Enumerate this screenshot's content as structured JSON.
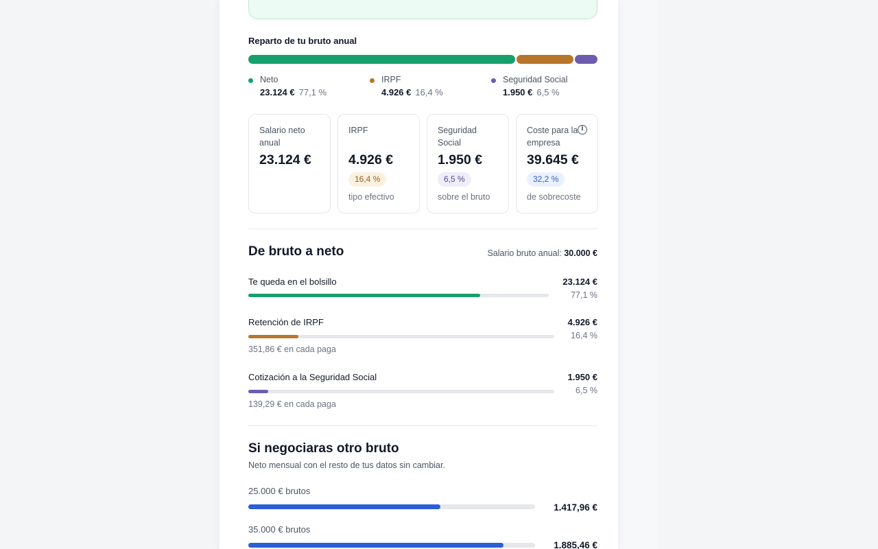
{
  "colors": {
    "neto": "#16a06d",
    "irpf": "#b7762a",
    "seguridad_social": "#6d5cae",
    "negotiation": "#2a5fd6",
    "badge_irpf_bg": "#fbf1e1",
    "badge_irpf_fg": "#9a5f1c",
    "badge_ss_bg": "#efedf7",
    "badge_ss_fg": "#5b4b9a",
    "badge_cost_bg": "#eaf1fe",
    "badge_cost_fg": "#2a5fd6"
  },
  "breakdown": {
    "title": "Reparto de tu bruto anual",
    "shares": {
      "neto": 0.771,
      "irpf": 0.164,
      "seguridad_social": 0.065
    },
    "legend": [
      {
        "label": "Neto",
        "value": "23.124 €",
        "pct": "77,1 %"
      },
      {
        "label": "IRPF",
        "value": "4.926 €",
        "pct": "16,4 %"
      },
      {
        "label": "Seguridad Social",
        "value": "1.950 €",
        "pct": "6,5 %"
      }
    ]
  },
  "kpis": [
    {
      "label": "Salario neto anual",
      "value": "23.124 €",
      "badge": "",
      "note": ""
    },
    {
      "label": "IRPF",
      "value": "4.926 €",
      "badge": "16,4 %",
      "note": "tipo efectivo"
    },
    {
      "label": "Seguridad Social",
      "value": "1.950 €",
      "badge": "6,5 %",
      "note": "sobre el bruto"
    },
    {
      "label": "Coste para la empresa",
      "value": "39.645 €",
      "badge": "32,2 %",
      "note": "de sobrecoste",
      "icon": "info-icon"
    }
  ],
  "gross_to_net": {
    "title": "De bruto a neto",
    "gross_label": "Salario bruto anual:",
    "gross_value": "30.000 €",
    "rows": [
      {
        "label": "Te queda en el bolsillo",
        "amount": "23.124 €",
        "pct": "77,1 %",
        "share": 0.771,
        "sub": ""
      },
      {
        "label": "Retención de IRPF",
        "amount": "4.926 €",
        "pct": "16,4 %",
        "share": 0.164,
        "sub": "351,86 € en cada paga"
      },
      {
        "label": "Cotización a la Seguridad Social",
        "amount": "1.950 €",
        "pct": "6,5 %",
        "share": 0.065,
        "sub": "139,29 € en cada paga"
      }
    ]
  },
  "negotiate": {
    "title": "Si negociaras otro bruto",
    "subtitle": "Neto mensual con el resto de tus datos sin cambiar.",
    "scenarios": [
      {
        "label": "25.000 € brutos",
        "value": "1.417,96 €",
        "share": 0.67
      },
      {
        "label": "35.000 € brutos",
        "value": "1.885,46 €",
        "share": 0.89
      }
    ]
  }
}
